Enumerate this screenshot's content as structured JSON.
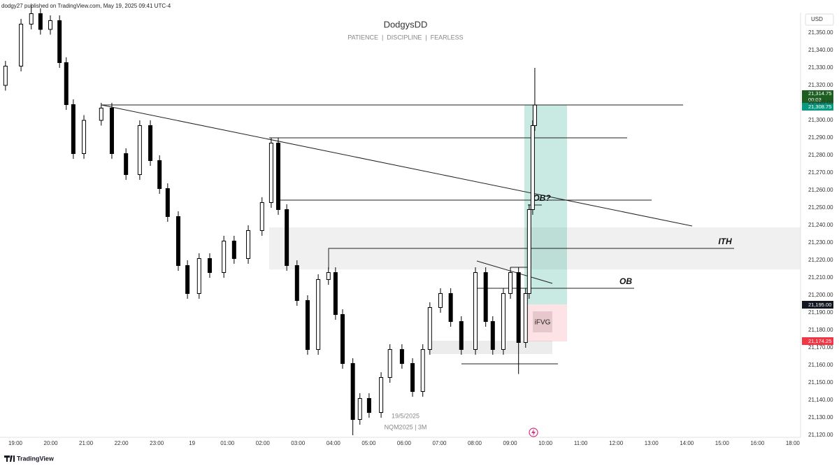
{
  "header": "dodgy27 published on TradingView.com, May 19, 2025 09:41 UTC-4",
  "footer": "TradingView",
  "chart_data": {
    "type": "candlestick",
    "title": "DodgysDD",
    "subtitle": "PATIENCE  |  DISCIPLINE  |  FEARLESS",
    "watermark_date": "19/5/2025",
    "watermark_symbol": "NQM2025 | 3M",
    "currency": "USD",
    "color": "#000000",
    "grid": false,
    "annotations": [
      "OB?",
      "ITH",
      "OB",
      "iFVG"
    ],
    "price_tags": [
      "21,314.75",
      "00:03",
      "21,308.75",
      "21,195.00",
      "21,174.25"
    ],
    "x": [
      -0.28,
      0.16,
      0.45,
      0.71,
      0.99,
      1.25,
      1.44,
      1.64,
      1.94,
      2.43,
      2.73,
      3.13,
      3.52,
      3.82,
      4.08,
      4.31,
      4.61,
      4.87,
      5.2,
      5.5,
      5.9,
      6.19,
      6.59,
      6.98,
      7.24,
      7.44,
      7.68,
      7.97,
      8.27,
      8.57,
      8.86,
      9.06,
      9.26,
      9.55,
      9.75,
      10.01,
      10.35,
      10.6,
      10.94,
      11.24,
      11.53,
      11.73,
      12.03,
      12.32,
      12.62,
      13.02,
      13.31,
      13.51,
      13.81,
      14.01,
      14.24,
      14.44,
      14.54,
      14.64,
      14.7
    ],
    "open": [
      21320,
      21331,
      21355,
      21361,
      21352,
      21357,
      21333,
      21309,
      21281,
      21300,
      21307,
      21281,
      21269,
      21297,
      21277,
      21261,
      21245,
      21217,
      21201,
      21221,
      21213,
      21231,
      21221,
      21237,
      21253,
      21287,
      21249,
      21217,
      21197,
      21169,
      21209,
      21213,
      21189,
      21161,
      21129,
      21141,
      21133,
      21153,
      21169,
      21161,
      21145,
      21169,
      21193,
      21201,
      21185,
      21169,
      21213,
      21185,
      21169,
      21201,
      21213,
      21173,
      21201,
      21249,
      21297
    ],
    "high": [
      21334,
      21358,
      21366,
      21364,
      21360,
      21360,
      21336,
      21312,
      21303,
      21310,
      21310,
      21284,
      21300,
      21300,
      21280,
      21264,
      21248,
      21220,
      21224,
      21224,
      21234,
      21234,
      21240,
      21256,
      21290,
      21290,
      21252,
      21220,
      21200,
      21212,
      21216,
      21216,
      21192,
      21164,
      21144,
      21144,
      21156,
      21172,
      21172,
      21164,
      21172,
      21196,
      21204,
      21204,
      21188,
      21216,
      21216,
      21188,
      21204,
      21216,
      21216,
      21204,
      21252,
      21300,
      21330
    ],
    "low": [
      21317,
      21328,
      21352,
      21349,
      21349,
      21330,
      21306,
      21278,
      21278,
      21297,
      21278,
      21266,
      21266,
      21274,
      21258,
      21242,
      21214,
      21198,
      21198,
      21210,
      21210,
      21218,
      21218,
      21234,
      21250,
      21246,
      21214,
      21194,
      21166,
      21166,
      21206,
      21186,
      21158,
      21120,
      21126,
      21130,
      21130,
      21150,
      21158,
      21142,
      21142,
      21166,
      21190,
      21182,
      21166,
      21166,
      21182,
      21166,
      21166,
      21198,
      21155,
      21170,
      21198,
      21246,
      21294
    ],
    "close": [
      21331,
      21355,
      21361,
      21352,
      21357,
      21333,
      21309,
      21281,
      21300,
      21307,
      21281,
      21269,
      21297,
      21277,
      21261,
      21245,
      21217,
      21201,
      21221,
      21213,
      21231,
      21221,
      21237,
      21253,
      21287,
      21249,
      21217,
      21197,
      21169,
      21209,
      21213,
      21189,
      21161,
      21129,
      21141,
      21133,
      21153,
      21169,
      21161,
      21145,
      21169,
      21193,
      21201,
      21185,
      21169,
      21213,
      21185,
      21169,
      21201,
      21213,
      21173,
      21201,
      21249,
      21297,
      21308.75
    ],
    "xlim": [
      -0.435,
      22.22
    ],
    "xticks": [
      {
        "value": 0,
        "label": "19:00"
      },
      {
        "value": 1,
        "label": "20:00"
      },
      {
        "value": 2,
        "label": "21:00"
      },
      {
        "value": 3,
        "label": "22:00"
      },
      {
        "value": 4,
        "label": "23:00"
      },
      {
        "value": 5,
        "label": "19"
      },
      {
        "value": 6,
        "label": "01:00"
      },
      {
        "value": 7,
        "label": "02:00"
      },
      {
        "value": 8,
        "label": "03:00"
      },
      {
        "value": 9,
        "label": "04:00"
      },
      {
        "value": 10,
        "label": "05:00"
      },
      {
        "value": 11,
        "label": "06:00"
      },
      {
        "value": 12,
        "label": "07:00"
      },
      {
        "value": 13,
        "label": "08:00"
      },
      {
        "value": 14,
        "label": "09:00"
      },
      {
        "value": 15,
        "label": "10:00"
      },
      {
        "value": 16,
        "label": "11:00"
      },
      {
        "value": 17,
        "label": "12:00"
      },
      {
        "value": 18,
        "label": "13:00"
      },
      {
        "value": 19,
        "label": "14:00"
      },
      {
        "value": 20,
        "label": "15:00"
      },
      {
        "value": 21,
        "label": "16:00"
      },
      {
        "value": 22,
        "label": "18:00"
      }
    ],
    "ylim": [
      21112.8,
      21368.8
    ],
    "yticks": [
      {
        "value": 21120,
        "label": "21,120.00"
      },
      {
        "value": 21130,
        "label": "21,130.00"
      },
      {
        "value": 21140,
        "label": "21,140.00"
      },
      {
        "value": 21150,
        "label": "21,150.00"
      },
      {
        "value": 21160,
        "label": "21,160.00"
      },
      {
        "value": 21170,
        "label": "21,170.00"
      },
      {
        "value": 21180,
        "label": "21,180.00"
      },
      {
        "value": 21190,
        "label": "21,190.00"
      },
      {
        "value": 21200,
        "label": "21,200.00"
      },
      {
        "value": 21210,
        "label": "21,210.00"
      },
      {
        "value": 21220,
        "label": "21,220.00"
      },
      {
        "value": 21230,
        "label": "21,230.00"
      },
      {
        "value": 21240,
        "label": "21,240.00"
      },
      {
        "value": 21250,
        "label": "21,250.00"
      },
      {
        "value": 21260,
        "label": "21,260.00"
      },
      {
        "value": 21270,
        "label": "21,270.00"
      },
      {
        "value": 21280,
        "label": "21,280.00"
      },
      {
        "value": 21290,
        "label": "21,290.00"
      },
      {
        "value": 21300,
        "label": "21,300.00"
      },
      {
        "value": 21310,
        "label": "21,310.00"
      },
      {
        "value": 21320,
        "label": "21,320.00"
      },
      {
        "value": 21330,
        "label": "21,330.00"
      },
      {
        "value": 21340,
        "label": "21,340.00"
      },
      {
        "value": 21350,
        "label": "21,350.00"
      }
    ]
  }
}
